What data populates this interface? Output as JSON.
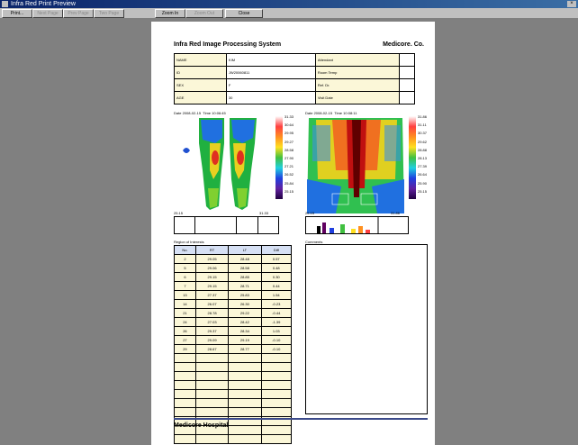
{
  "window": {
    "title": "Infra Red Print Preview"
  },
  "toolbar": {
    "buttons": [
      {
        "label": "Print...",
        "disabled": false
      },
      {
        "label": "Next Page",
        "disabled": true
      },
      {
        "label": "Prev Page",
        "disabled": true
      },
      {
        "label": "Two Page",
        "disabled": true
      },
      {
        "label": "Zoom In",
        "disabled": false
      },
      {
        "label": "Zoom Out",
        "disabled": true
      },
      {
        "label": "Close",
        "disabled": false
      }
    ]
  },
  "report": {
    "system_title": "Infra Red Image Processing System",
    "company": "Medicore. Co.",
    "info": [
      [
        "NAME",
        "KIM",
        "Attendant",
        ""
      ],
      [
        "ID",
        "JW20060811",
        "Room Temp",
        ""
      ],
      [
        "SEX",
        "F",
        "Ref. Dr.",
        ""
      ],
      [
        "AGE",
        "30",
        "Visit Date",
        ""
      ]
    ],
    "image1": {
      "date_label": "Date",
      "date": "2008-02-15",
      "time_label": "Time",
      "time": "10:06:45",
      "scale": [
        "31.33",
        "30.64",
        "29.95",
        "29.27",
        "28.58",
        "27.90",
        "27.21",
        "26.52",
        "25.84",
        "25.15"
      ],
      "range_low": "25.15",
      "range_high": "31.33"
    },
    "image2": {
      "date_label": "Date",
      "date": "2008-02-15",
      "time_label": "Time",
      "time": "10:08:11",
      "scale": [
        "31.86",
        "31.11",
        "30.37",
        "29.62",
        "28.88",
        "28.13",
        "27.39",
        "26.64",
        "25.90",
        "25.15"
      ],
      "range_low": "25.15",
      "range_high": "31.86"
    },
    "region_label": "Region of Interests",
    "comments_label": "Comments",
    "table": {
      "headers": [
        "No.",
        "RT",
        "LT",
        "Diff"
      ],
      "rows": [
        [
          "2",
          "29.05",
          "28.48",
          "0.57"
        ],
        [
          "5",
          "29.06",
          "28.58",
          "0.48"
        ],
        [
          "6",
          "29.15",
          "28.85",
          "0.30"
        ],
        [
          "7",
          "29.15",
          "28.71",
          "0.44"
        ],
        [
          "13",
          "27.37",
          "25.83",
          "1.54"
        ],
        [
          "14",
          "26.07",
          "26.30",
          "-0.23"
        ],
        [
          "21",
          "28.78",
          "29.22",
          "-0.44"
        ],
        [
          "24",
          "27.03",
          "28.42",
          "-1.39"
        ],
        [
          "26",
          "29.37",
          "28.34",
          "1.03"
        ],
        [
          "27",
          "29.09",
          "29.19",
          "-0.10"
        ],
        [
          "29",
          "28.67",
          "28.77",
          "-0.10"
        ]
      ],
      "empty_rows": 10
    },
    "footer": "Medicore Hospital"
  }
}
